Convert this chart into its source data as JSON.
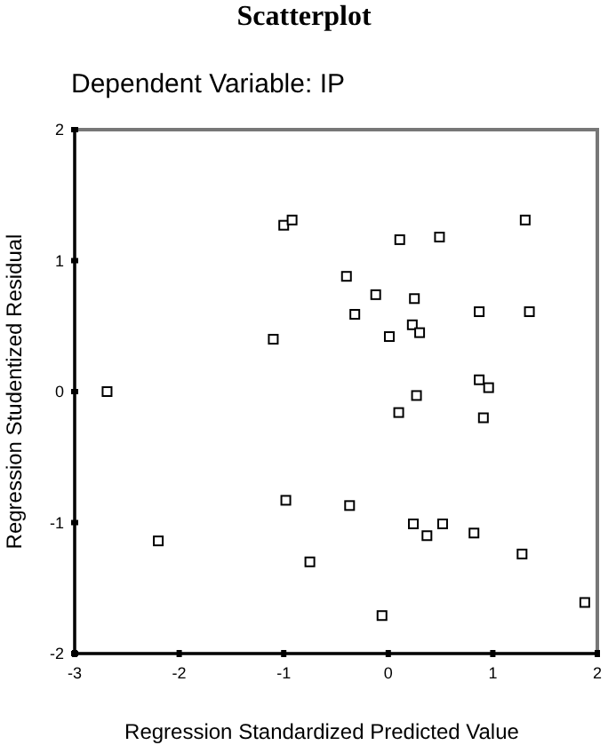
{
  "chart_data": {
    "type": "scatter",
    "title": "Scatterplot",
    "subtitle": "Dependent Variable: IP",
    "xlabel": "Regression Standardized Predicted Value",
    "ylabel": "Regression Studentized Residual",
    "x": [
      -2.69,
      -1.0,
      -0.92,
      0.11,
      0.49,
      1.31,
      -0.4,
      -0.12,
      0.25,
      -0.32,
      0.23,
      0.3,
      0.87,
      1.35,
      -1.1,
      0.01,
      0.87,
      0.96,
      0.27,
      0.1,
      0.91,
      -2.2,
      -0.98,
      -0.37,
      -0.75,
      0.24,
      0.37,
      0.52,
      0.82,
      1.28,
      1.88,
      -0.06
    ],
    "series": [
      {
        "color": "#000000",
        "values": [
          0.0,
          1.27,
          1.31,
          1.16,
          1.18,
          1.31,
          0.88,
          0.74,
          0.71,
          0.59,
          0.51,
          0.45,
          0.61,
          0.61,
          0.4,
          0.42,
          0.09,
          0.03,
          -0.03,
          -0.16,
          -0.2,
          -1.14,
          -0.83,
          -0.87,
          -1.3,
          -1.01,
          -1.1,
          -1.01,
          -1.08,
          -1.24,
          -1.61,
          -1.71
        ]
      }
    ],
    "xlim": [
      -3,
      2
    ],
    "xticks": [
      -3,
      -2,
      -1,
      0,
      1,
      2
    ],
    "ylim": [
      -2,
      2
    ],
    "yticks": [
      -2,
      -1,
      0,
      1,
      2
    ],
    "marker": "square",
    "grid": false
  }
}
